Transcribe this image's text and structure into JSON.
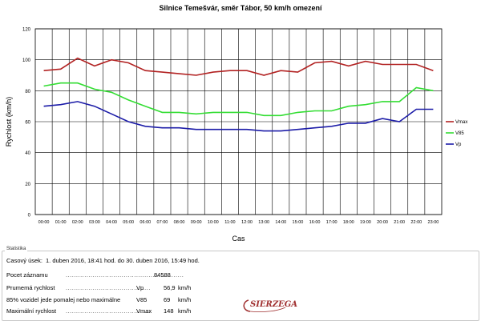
{
  "chart_data": {
    "type": "line",
    "title": "Silnice Temešvár, směr Tábor, 50 km/h omezení",
    "xlabel": "Cas",
    "ylabel": "Rychlost (km/h)",
    "ylim": [
      0,
      120
    ],
    "yticks": [
      0,
      20,
      40,
      60,
      80,
      100,
      120
    ],
    "grid": true,
    "legend": "right",
    "categories": [
      "00:00",
      "01:00",
      "02:00",
      "03:00",
      "04:00",
      "05:00",
      "06:00",
      "07:00",
      "08:00",
      "09:00",
      "10:00",
      "11:00",
      "12:00",
      "13:00",
      "14:00",
      "15:00",
      "16:00",
      "17:00",
      "18:00",
      "19:00",
      "20:00",
      "21:00",
      "22:00",
      "23:00"
    ],
    "series": [
      {
        "name": "Vmax",
        "color": "#b22222",
        "values": [
          93,
          94,
          101,
          96,
          100,
          98,
          93,
          92,
          91,
          90,
          92,
          93,
          93,
          90,
          93,
          92,
          98,
          99,
          96,
          99,
          97,
          97,
          97,
          93
        ]
      },
      {
        "name": "V85",
        "color": "#33dd33",
        "values": [
          83,
          85,
          85,
          81,
          79,
          74,
          70,
          66,
          66,
          65,
          66,
          66,
          66,
          64,
          64,
          66,
          67,
          67,
          70,
          71,
          73,
          73,
          82,
          80
        ]
      },
      {
        "name": "Vp",
        "color": "#1c1ca8",
        "values": [
          70,
          71,
          73,
          70,
          65,
          60,
          57,
          56,
          56,
          55,
          55,
          55,
          55,
          54,
          54,
          55,
          56,
          57,
          59,
          59,
          62,
          60,
          68,
          68
        ]
      }
    ]
  },
  "stats": {
    "legend": "Statistika",
    "period_label": "Casový úsek:",
    "period_value": "1. duben 2016, 18:41 hod. do 30. duben 2016, 15:49 hod.",
    "rows": [
      {
        "label": "Pocet záznamu",
        "symbol": "",
        "value": "84588",
        "unit": ""
      },
      {
        "label": "Prumemá rychlost",
        "symbol": "Vp",
        "value": "56,9",
        "unit": "km/h"
      },
      {
        "label": "85% vozidel jede pomalej nebo maximálne",
        "symbol": "V85",
        "value": "69",
        "unit": "km/h"
      },
      {
        "label": "Maximální rychlost",
        "symbol": "Vmax",
        "value": "148",
        "unit": "km/h"
      }
    ],
    "logo_text": "SIERZEGA"
  }
}
